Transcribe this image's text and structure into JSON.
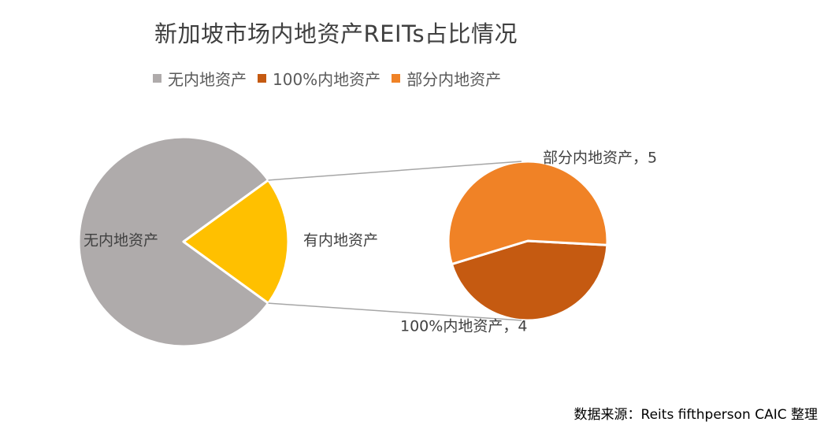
{
  "chart_data": {
    "type": "pie",
    "title": "新加坡市场内地资产REITs占比情况",
    "primary_pie": {
      "slices": [
        {
          "label": "无内地资产",
          "value": 0.8,
          "color": "#AFABAB"
        },
        {
          "label": "有内地资产",
          "value": 0.2,
          "color": "#FFC000"
        }
      ]
    },
    "secondary_pie": {
      "parent_slice": "有内地资产",
      "slices": [
        {
          "label": "100%内地资产",
          "value": 4,
          "color": "#C55A11",
          "data_label": "100%内地资产，4"
        },
        {
          "label": "部分内地资产",
          "value": 5,
          "color": "#F08226",
          "data_label": "部分内地资产，5"
        }
      ]
    },
    "legend": {
      "position": "top",
      "entries": [
        {
          "label": "无内地资产",
          "color": "#AFABAB"
        },
        {
          "label": "100%内地资产",
          "color": "#C55A11"
        },
        {
          "label": "部分内地资产",
          "color": "#F08226"
        }
      ]
    }
  },
  "source_note": "数据来源：Reits fifthperson CAIC 整理"
}
